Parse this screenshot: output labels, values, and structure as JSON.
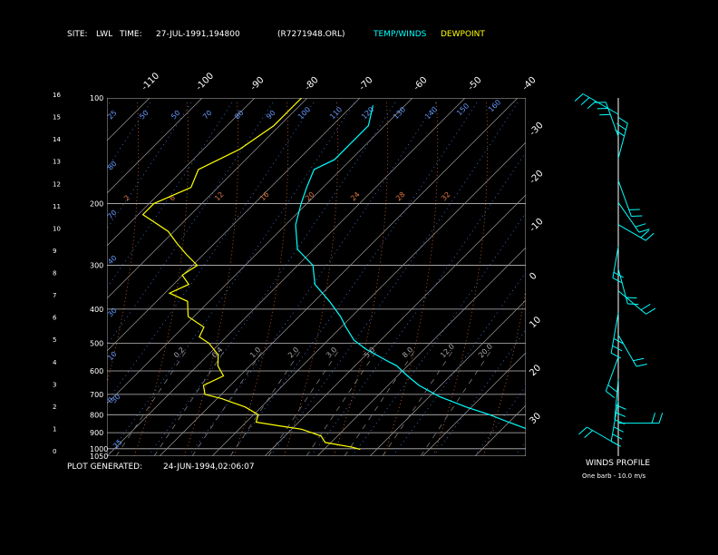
{
  "header": {
    "site_label": "SITE:",
    "site_value": "LWL",
    "time_label": "TIME:",
    "time_value": "27-JUL-1991,194800",
    "file_id": "(R7271948.ORL)",
    "temp_legend": "TEMP/WINDS",
    "dew_legend": "DEWPOINT",
    "temp_color": "#00ffff",
    "dew_color": "#ffff00"
  },
  "footer": {
    "generated_label": "PLOT GENERATED:",
    "generated_value": "24-JUN-1994,02:06:07",
    "winds_title": "WINDS PROFILE",
    "barb_note": "One barb - 10.0 m/s"
  },
  "chart_data": {
    "type": "line",
    "pressure_levels": [
      "100",
      "200",
      "300",
      "400",
      "500",
      "600",
      "700",
      "800",
      "900",
      "1000",
      "1050"
    ],
    "height_ticks": [
      "0",
      "1",
      "2",
      "3",
      "4",
      "5",
      "6",
      "7",
      "8",
      "9",
      "10",
      "11",
      "12",
      "13",
      "14",
      "15",
      "16"
    ],
    "top_temp_labels": [
      "-110",
      "-100",
      "-90",
      "-80",
      "-70",
      "-60",
      "-50",
      "-40"
    ],
    "right_temp_labels": [
      "-30",
      "-20",
      "-10",
      "0",
      "10",
      "20",
      "30"
    ],
    "mixing_ratio_labels_top": [
      "25",
      "50",
      "50",
      "70",
      "80",
      "90",
      "100",
      "110",
      "120",
      "130",
      "140",
      "150",
      "160"
    ],
    "theta_e_labels": [
      "2",
      "6",
      "12",
      "16",
      "20",
      "24",
      "28",
      "32"
    ],
    "mixing_ratio_labels_mid": [
      "0.2",
      "0.4",
      "1.0",
      "2.0",
      "3.0",
      "5.0",
      "8.0",
      "12.0",
      "20.0"
    ],
    "left_isotherm_labels": [
      "80",
      "70",
      "40",
      "30",
      "10",
      "0"
    ],
    "lower_labels": [
      "30",
      "25"
    ],
    "series": [
      {
        "name": "TEMP/WINDS",
        "points": [
          [
            -73,
            105
          ],
          [
            -70,
            120
          ],
          [
            -70,
            150
          ],
          [
            -72,
            160
          ],
          [
            -70,
            180
          ],
          [
            -68,
            200
          ],
          [
            -65,
            230
          ],
          [
            -60,
            270
          ],
          [
            -54,
            300
          ],
          [
            -50,
            340
          ],
          [
            -44,
            380
          ],
          [
            -39,
            420
          ],
          [
            -36,
            450
          ],
          [
            -32,
            490
          ],
          [
            -28,
            520
          ],
          [
            -22,
            560
          ],
          [
            -19,
            580
          ],
          [
            -15,
            620
          ],
          [
            -11,
            660
          ],
          [
            -5,
            710
          ],
          [
            2,
            760
          ],
          [
            8,
            800
          ],
          [
            13,
            840
          ],
          [
            18,
            880
          ],
          [
            24,
            940
          ],
          [
            29,
            980
          ],
          [
            33,
            1005
          ]
        ]
      },
      {
        "name": "DEWPOINT",
        "points": [
          [
            -88,
            100
          ],
          [
            -88,
            120
          ],
          [
            -90,
            140
          ],
          [
            -94,
            160
          ],
          [
            -92,
            180
          ],
          [
            -96,
            200
          ],
          [
            -96,
            215
          ],
          [
            -88,
            240
          ],
          [
            -84,
            260
          ],
          [
            -80,
            280
          ],
          [
            -76,
            300
          ],
          [
            -77,
            320
          ],
          [
            -74,
            340
          ],
          [
            -76,
            360
          ],
          [
            -71,
            380
          ],
          [
            -68,
            420
          ],
          [
            -63,
            450
          ],
          [
            -62,
            480
          ],
          [
            -59,
            500
          ],
          [
            -55,
            540
          ],
          [
            -53,
            580
          ],
          [
            -50,
            620
          ],
          [
            -52,
            660
          ],
          [
            -50,
            700
          ],
          [
            -46,
            720
          ],
          [
            -43,
            740
          ],
          [
            -40,
            760
          ],
          [
            -36,
            800
          ],
          [
            -35,
            840
          ],
          [
            -30,
            860
          ],
          [
            -25,
            880
          ],
          [
            -20,
            920
          ],
          [
            -18,
            960
          ],
          [
            -12,
            990
          ],
          [
            -10,
            1005
          ]
        ]
      }
    ],
    "wind_profile": [
      {
        "len": 45,
        "angle": 60,
        "barbs": 3
      },
      {
        "len": 40,
        "angle": 20,
        "barbs": 3
      },
      {
        "len": 40,
        "angle": -15,
        "barbs": 3
      },
      {
        "len": 42,
        "angle": 200,
        "barbs": 2
      },
      {
        "len": 40,
        "angle": 215,
        "barbs": 2
      },
      {
        "len": 35,
        "angle": 240,
        "barbs": 2
      },
      {
        "len": 35,
        "angle": 170,
        "barbs": 2
      },
      {
        "len": 40,
        "angle": 195,
        "barbs": 2
      },
      {
        "len": 40,
        "angle": 230,
        "barbs": 2
      },
      {
        "len": 45,
        "angle": 170,
        "barbs": 3
      },
      {
        "len": 40,
        "angle": 210,
        "barbs": 2
      },
      {
        "len": 40,
        "angle": 160,
        "barbs": 2
      },
      {
        "len": 45,
        "angle": 175,
        "barbs": 3
      },
      {
        "len": 45,
        "angle": 170,
        "barbs": 3
      },
      {
        "len": 45,
        "angle": 270,
        "barbs": 2
      },
      {
        "len": 40,
        "angle": 60,
        "barbs": 2
      }
    ]
  }
}
